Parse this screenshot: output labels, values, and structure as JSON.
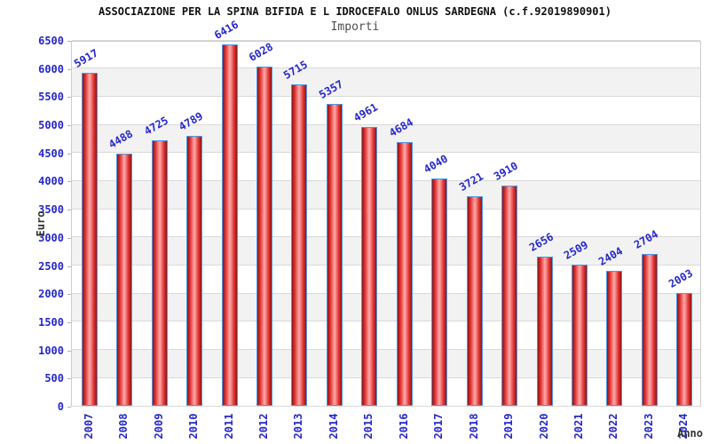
{
  "chart_data": {
    "type": "bar",
    "title": "ASSOCIAZIONE PER LA SPINA BIFIDA E L IDROCEFALO ONLUS SARDEGNA (c.f.92019890901)",
    "subtitle": "Importi",
    "xlabel": "Anno",
    "ylabel": "Euro",
    "categories": [
      "2007",
      "2008",
      "2009",
      "2010",
      "2011",
      "2012",
      "2013",
      "2014",
      "2015",
      "2016",
      "2017",
      "2018",
      "2019",
      "2020",
      "2021",
      "2022",
      "2023",
      "2024"
    ],
    "values": [
      5917,
      4488,
      4725,
      4789,
      6416,
      6028,
      5715,
      5357,
      4961,
      4684,
      4040,
      3721,
      3910,
      2656,
      2509,
      2404,
      2704,
      2003
    ],
    "ylim": [
      0,
      6500
    ],
    "ytick_step": 500,
    "grid": true,
    "bands_alternating": true,
    "legend_position": "none",
    "colors": {
      "label_blue": "#2626c9",
      "title_color": "#111111",
      "subtitle_color": "#4d4d4d",
      "axis_label_color": "#333333",
      "bar_border": "#4f97e0",
      "bar_fill_dark": "#8c1616",
      "bar_fill_mid": "#e03030",
      "bar_fill_light": "#ffabab",
      "band_gray": "#f2f2f2",
      "gridline": "#d9d9d9",
      "plot_border": "#cccccc"
    }
  }
}
